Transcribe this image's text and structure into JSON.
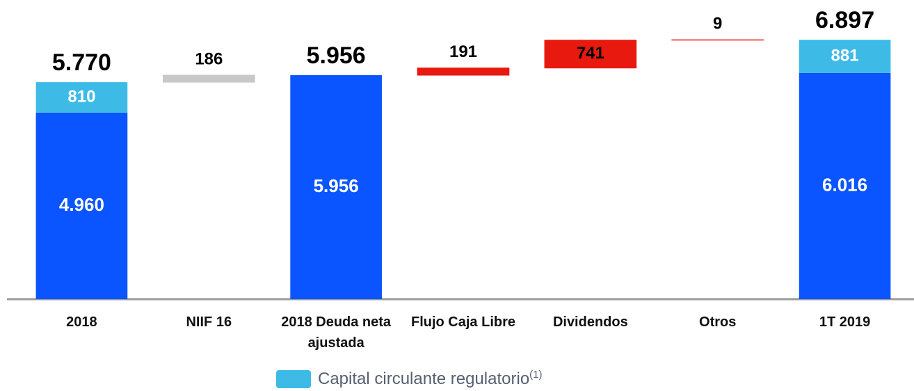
{
  "chart_data": {
    "type": "waterfall",
    "categories": [
      "2018",
      "NIIF 16",
      "2018 Deuda neta ajustada",
      "Flujo Caja Libre",
      "Dividendos",
      "Otros",
      "1T 2019"
    ],
    "measure": [
      "absolute",
      "relative",
      "absolute",
      "relative",
      "relative",
      "relative",
      "absolute"
    ],
    "values": [
      4960,
      186,
      5956,
      191,
      741,
      9,
      6016
    ],
    "value_labels": [
      "4.960",
      "186",
      "5.956",
      "191",
      "741",
      "9",
      "6.016"
    ],
    "colors": [
      "#0a55ff",
      "#c8c8c8",
      "#0a55ff",
      "#e8190e",
      "#e8190e",
      "#e8190e",
      "#0a55ff"
    ],
    "capital": {
      "name": "Capital circulante regulatorio",
      "name_superscript": "(1)",
      "color": "#3dbbe6",
      "values": [
        810,
        null,
        null,
        null,
        null,
        null,
        881
      ],
      "value_labels": [
        "810",
        null,
        null,
        null,
        null,
        null,
        "881"
      ]
    },
    "totals": [
      5770,
      null,
      5956,
      null,
      null,
      null,
      6897
    ],
    "totals_labels": [
      "5.770",
      null,
      "5.956",
      null,
      null,
      null,
      "6.897"
    ],
    "ylim": [
      0,
      7400
    ]
  }
}
